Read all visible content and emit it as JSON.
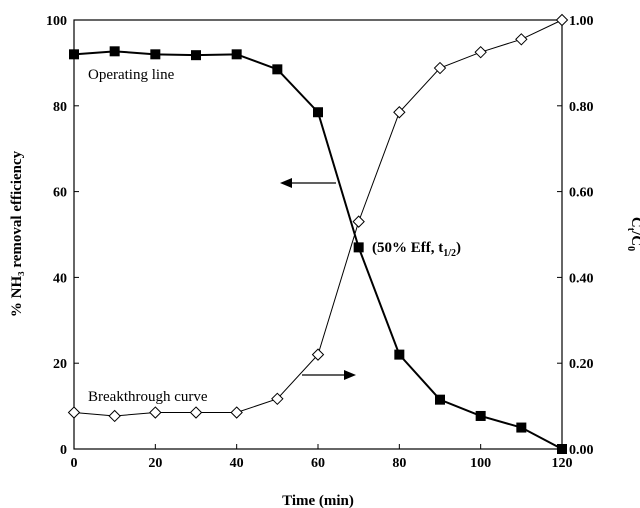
{
  "chart_data": {
    "type": "line",
    "xlabel": "Time (min)",
    "ylabel_left": "% NH₃ removal efficiency",
    "ylabel_right": "Ct/C0",
    "xlim": [
      0,
      120
    ],
    "ylim_left": [
      0,
      100
    ],
    "ylim_right": [
      0,
      1
    ],
    "x_ticks": [
      "0",
      "20",
      "40",
      "60",
      "80",
      "100",
      "120"
    ],
    "y_left_ticks": [
      "0",
      "20",
      "40",
      "60",
      "80",
      "100"
    ],
    "y_right_ticks": [
      "0.00",
      "0.20",
      "0.40",
      "0.60",
      "0.80",
      "1.00"
    ],
    "x": [
      0,
      10,
      20,
      30,
      40,
      50,
      60,
      70,
      80,
      90,
      100,
      110,
      120
    ],
    "series": [
      {
        "name": "Operating line",
        "axis": "left",
        "marker": "filled-square",
        "values": [
          92,
          92.7,
          92,
          91.8,
          92,
          88.5,
          78.5,
          47,
          22,
          11.5,
          7.7,
          5,
          0
        ]
      },
      {
        "name": "Breakthrough curve",
        "axis": "right",
        "marker": "open-diamond",
        "values": [
          0.085,
          0.077,
          0.085,
          0.085,
          0.085,
          0.117,
          0.22,
          0.53,
          0.785,
          0.888,
          0.925,
          0.955,
          1.0
        ]
      }
    ],
    "annotations": [
      {
        "text": "(50% Eff, t",
        "sub": "1/2",
        "close": ")"
      }
    ]
  }
}
